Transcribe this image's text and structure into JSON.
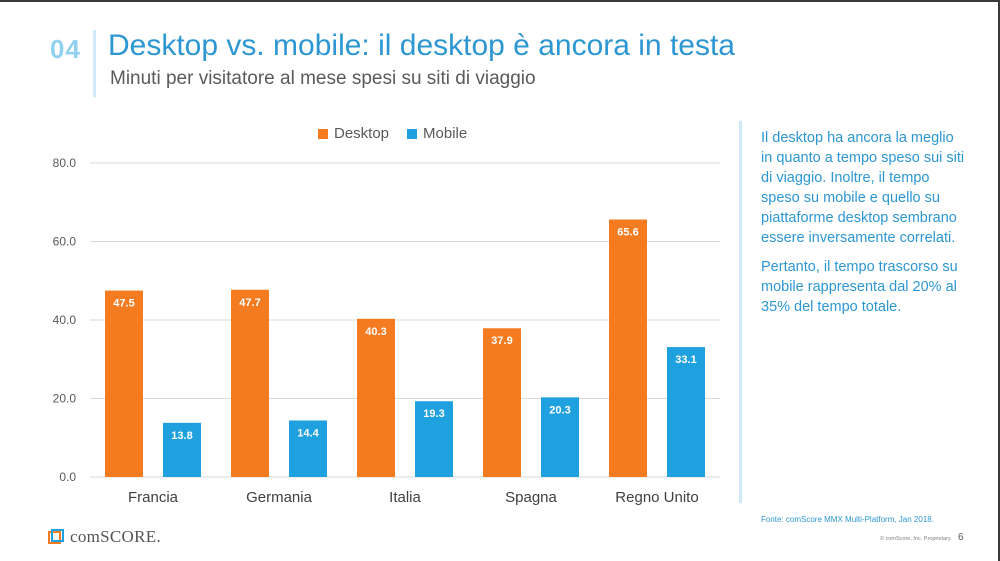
{
  "slide": {
    "number": "04",
    "title": "Desktop vs. mobile: il desktop è ancora in testa",
    "subtitle": "Minuti per visitatore al mese spesi su siti di viaggio"
  },
  "colors": {
    "desktop": "#f47b20",
    "mobile": "#1fa1e0",
    "accent": "#2c97d3"
  },
  "chart_data": {
    "type": "bar",
    "categories": [
      "Francia",
      "Germania",
      "Italia",
      "Spagna",
      "Regno Unito"
    ],
    "series": [
      {
        "name": "Desktop",
        "values": [
          47.5,
          47.7,
          40.3,
          37.9,
          65.6
        ]
      },
      {
        "name": "Mobile",
        "values": [
          13.8,
          14.4,
          19.3,
          20.3,
          33.1
        ]
      }
    ],
    "yticks": [
      "0.0",
      "20.0",
      "40.0",
      "60.0",
      "80.0"
    ],
    "ylim": [
      0,
      80
    ],
    "grid": true,
    "legend": "top"
  },
  "sidebar": {
    "paragraph1": "Il desktop ha ancora la meglio in quanto a tempo speso sui siti di viaggio. Inoltre, il tempo speso su mobile e quello su piattaforme desktop sembrano essere inversamente correlati.",
    "paragraph2": "Pertanto, il tempo trascorso su mobile rappresenta dal 20% al 35% del tempo totale."
  },
  "footer": {
    "source": "Fonte: comScore MMX Multi-Platform, Jan 2018.",
    "copyright": "© comScore, Inc. Proprietary.",
    "page": "6",
    "logo_text": "comSCORE."
  }
}
